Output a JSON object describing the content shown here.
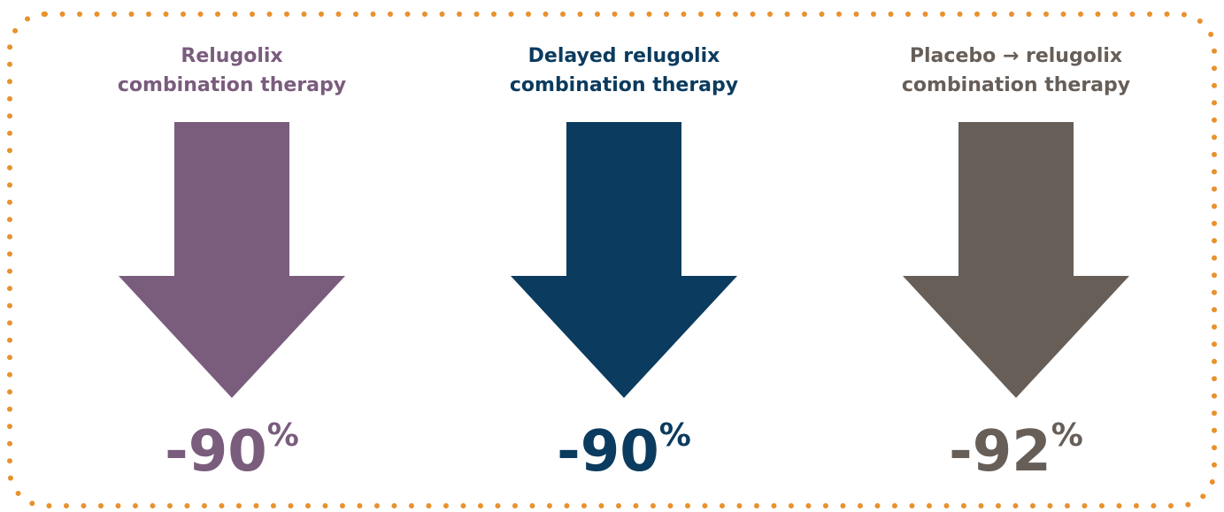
{
  "panels": [
    {
      "title": [
        "Relugolix",
        "combination therapy"
      ],
      "color": "#7a5c7d",
      "value": "-90",
      "unit": "%"
    },
    {
      "title": [
        "Delayed relugolix",
        "combination therapy"
      ],
      "color": "#0b3b5e",
      "value": "-90",
      "unit": "%"
    },
    {
      "title": [
        "Placebo → relugolix",
        "combination therapy"
      ],
      "color": "#675e58",
      "value": "-92",
      "unit": "%"
    }
  ]
}
